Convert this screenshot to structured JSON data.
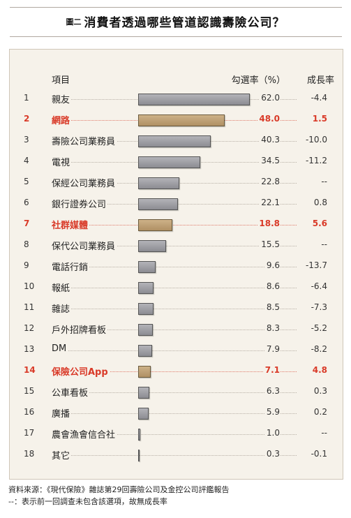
{
  "title": {
    "figure_label": "圖二",
    "main": "消費者透過哪些管道認識壽險公司？"
  },
  "header": {
    "item": "項目",
    "select_rate": "勾選率（%）",
    "growth": "成長率"
  },
  "chart_data": {
    "type": "bar",
    "orientation": "horizontal",
    "xlim": [
      0,
      62
    ],
    "grid": false,
    "categories": [
      "親友",
      "網路",
      "壽險公司業務員",
      "電視",
      "保經公司業務員",
      "銀行證券公司",
      "社群媒體",
      "保代公司業務員",
      "電話行銷",
      "報紙",
      "雜誌",
      "戶外招牌看板",
      "DM",
      "保險公司App",
      "公車看板",
      "廣播",
      "農會漁會信合社",
      "其它"
    ],
    "numbers": [
      "1",
      "2",
      "3",
      "4",
      "5",
      "6",
      "7",
      "8",
      "9",
      "10",
      "11",
      "12",
      "13",
      "14",
      "15",
      "16",
      "17",
      "18"
    ],
    "values": [
      62.0,
      48.0,
      40.3,
      34.5,
      22.8,
      22.1,
      18.8,
      15.5,
      9.6,
      8.6,
      8.5,
      8.3,
      7.9,
      7.1,
      6.3,
      5.9,
      1.0,
      0.3
    ],
    "value_labels": [
      "62.0",
      "48.0",
      "40.3",
      "34.5",
      "22.8",
      "22.1",
      "18.8",
      "15.5",
      "9.6",
      "8.6",
      "8.5",
      "8.3",
      "7.9",
      "7.1",
      "6.3",
      "5.9",
      "1.0",
      "0.3"
    ],
    "growth": [
      "-4.4",
      "1.5",
      "-10.0",
      "-11.2",
      "--",
      "0.8",
      "5.6",
      "--",
      "-13.7",
      "-6.4",
      "-7.3",
      "-5.2",
      "-8.2",
      "4.8",
      "0.3",
      "0.2",
      "--",
      "-0.1"
    ],
    "highlighted_index": [
      1,
      6,
      13
    ],
    "colors": {
      "bar": "#9a9aa0",
      "bar_highlight": "#bfa276",
      "text_highlight": "#d93a28"
    }
  },
  "notes": {
    "source": "資料來源：《現代保險》雜誌第29回壽險公司及金控公司評鑑報告",
    "dash_note": "--：表示前一回調查未包含該選項，故無成長率"
  }
}
